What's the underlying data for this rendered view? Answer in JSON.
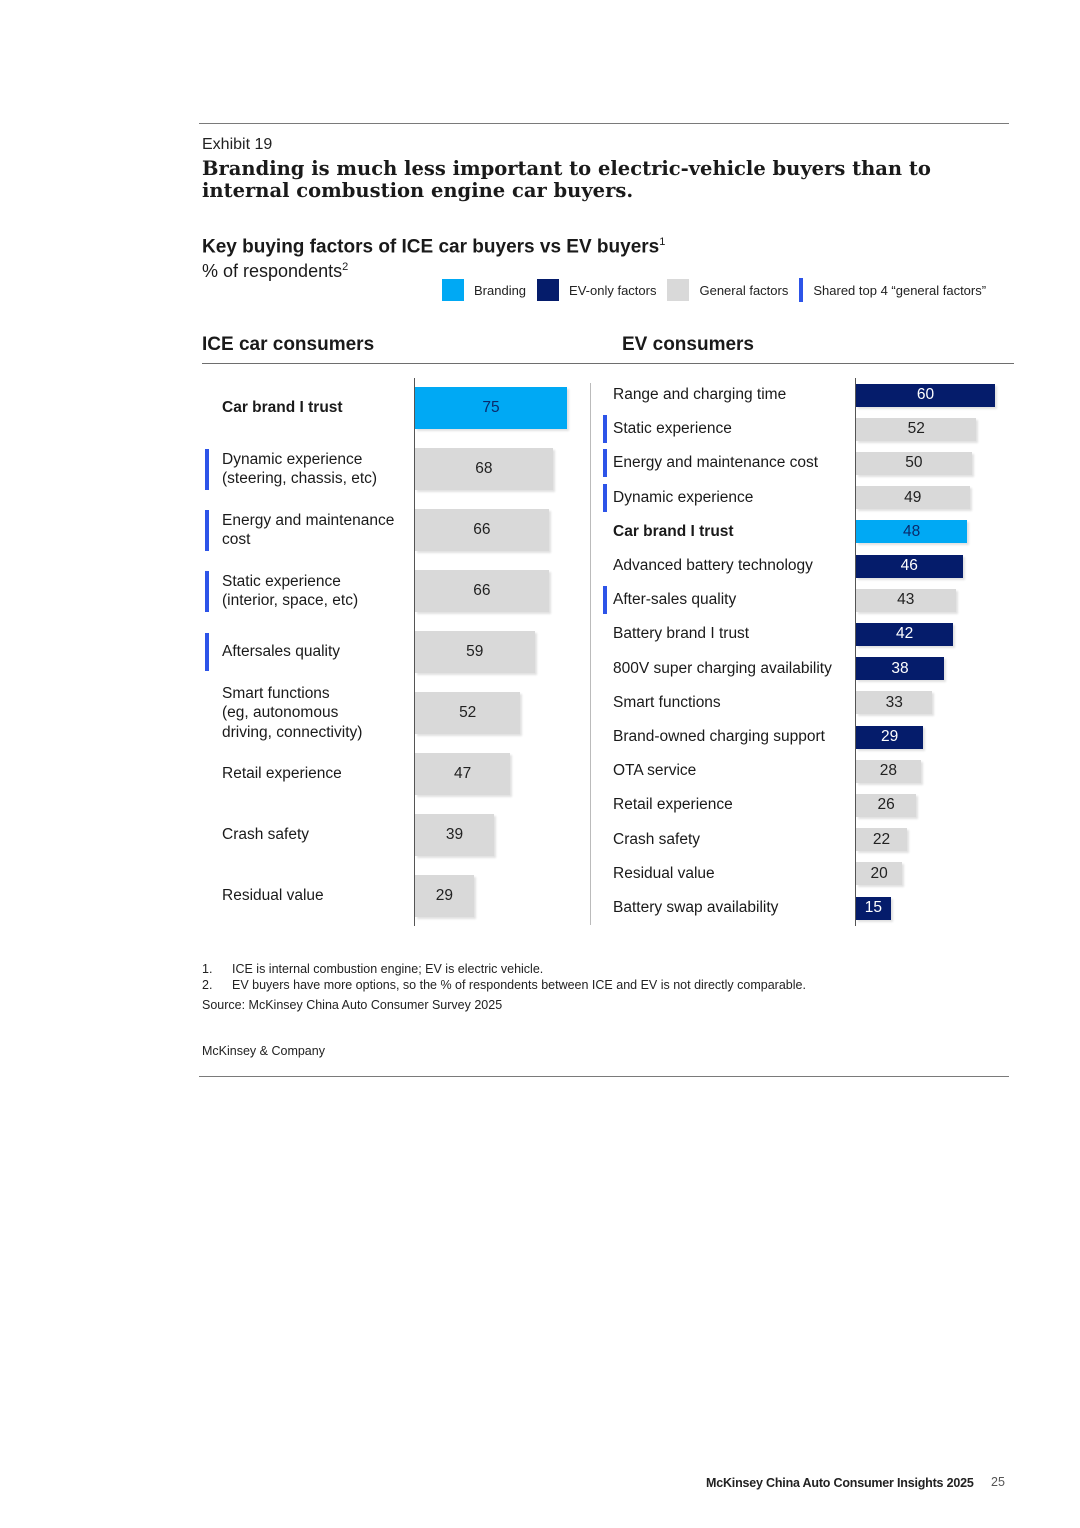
{
  "exhibit": "Exhibit 19",
  "headline": "Branding is much less important to electric-vehicle buyers than to  internal combustion engine car buyers.",
  "chart_title": "Key buying factors of ICE car buyers vs EV buyers",
  "chart_title_note": "1",
  "chart_subtitle": "% of respondents",
  "chart_subtitle_note": "2",
  "legend": [
    {
      "label": "Branding",
      "color": "#00a9f4"
    },
    {
      "label": "EV-only factors",
      "color": "#051c6b"
    },
    {
      "label": "General factors",
      "color": "#d9d9d9"
    },
    {
      "label": "Shared top 4 “general factors”",
      "color": "#2d54e8",
      "marker": true
    }
  ],
  "chart_data": [
    {
      "type": "bar",
      "orientation": "horizontal",
      "title": "ICE car consumers",
      "unit": "% of respondents",
      "categories": [
        "Car brand I trust",
        "Dynamic experience\n(steering, chassis, etc)",
        "Energy and maintenance\ncost",
        "Static experience\n(interior, space, etc)",
        "Aftersales quality",
        "Smart functions\n(eg, autonomous\ndriving, connectivity)",
        "Retail experience",
        "Crash safety",
        "Residual value"
      ],
      "values": [
        75,
        68,
        66,
        66,
        59,
        52,
        47,
        39,
        29
      ],
      "kinds": [
        "branding",
        "general",
        "general",
        "general",
        "general",
        "general",
        "general",
        "general",
        "general"
      ],
      "shared_top4": [
        false,
        true,
        true,
        true,
        true,
        false,
        false,
        false,
        false
      ],
      "xlim": [
        0,
        75
      ]
    },
    {
      "type": "bar",
      "orientation": "horizontal",
      "title": "EV consumers",
      "unit": "% of respondents",
      "categories": [
        "Range and charging time",
        "Static experience",
        "Energy and maintenance cost",
        "Dynamic experience",
        "Car brand I trust",
        "Advanced battery technology",
        "After-sales quality",
        "Battery brand I trust",
        "800V super charging availability",
        "Smart functions",
        "Brand-owned charging support",
        "OTA service",
        "Retail experience",
        "Crash safety",
        "Residual value",
        "Battery swap availability"
      ],
      "values": [
        60,
        52,
        50,
        49,
        48,
        46,
        43,
        42,
        38,
        33,
        29,
        28,
        26,
        22,
        20,
        15
      ],
      "kinds": [
        "ev",
        "general",
        "general",
        "general",
        "branding",
        "ev",
        "general",
        "ev",
        "ev",
        "general",
        "ev",
        "general",
        "general",
        "general",
        "general",
        "ev"
      ],
      "shared_top4": [
        false,
        true,
        true,
        true,
        false,
        false,
        true,
        false,
        false,
        false,
        false,
        false,
        false,
        false,
        false,
        false
      ],
      "xlim": [
        0,
        60
      ]
    }
  ],
  "footnotes": [
    {
      "num": "1.",
      "text": "ICE is internal combustion engine; EV is electric vehicle."
    },
    {
      "num": "2.",
      "text": "EV buyers have more options, so the % of respondents between ICE and EV is not directly comparable."
    }
  ],
  "source": "Source: McKinsey China Auto Consumer Survey 2025",
  "brand": "McKinsey & Company",
  "footer_title": "McKinsey China Auto Consumer Insights 2025",
  "page_number": "25"
}
